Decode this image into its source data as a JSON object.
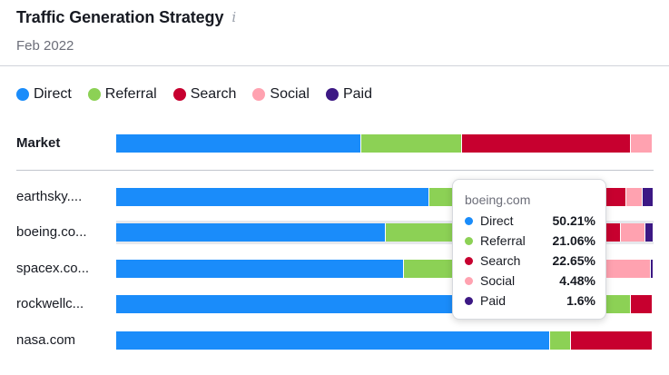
{
  "header": {
    "title": "Traffic Generation Strategy",
    "info_icon": "i",
    "subtitle": "Feb 2022"
  },
  "colors": {
    "Direct": "#1a8cfa",
    "Referral": "#8cd155",
    "Search": "#c7002f",
    "Social": "#ffa2b0",
    "Paid": "#3c1884"
  },
  "legend": [
    {
      "label": "Direct",
      "color": "#1a8cfa"
    },
    {
      "label": "Referral",
      "color": "#8cd155"
    },
    {
      "label": "Search",
      "color": "#c7002f"
    },
    {
      "label": "Social",
      "color": "#ffa2b0"
    },
    {
      "label": "Paid",
      "color": "#3c1884"
    }
  ],
  "tooltip": {
    "title": "boeing.com",
    "rows": [
      {
        "label": "Direct",
        "value": "50.21%",
        "color": "#1a8cfa"
      },
      {
        "label": "Referral",
        "value": "21.06%",
        "color": "#8cd155"
      },
      {
        "label": "Search",
        "value": "22.65%",
        "color": "#c7002f"
      },
      {
        "label": "Social",
        "value": "4.48%",
        "color": "#ffa2b0"
      },
      {
        "label": "Paid",
        "value": "1.6%",
        "color": "#3c1884"
      }
    ]
  },
  "chart_data": {
    "type": "bar",
    "stacked": true,
    "orientation": "horizontal",
    "unit": "percent",
    "series_names": [
      "Direct",
      "Referral",
      "Search",
      "Social",
      "Paid"
    ],
    "rows": [
      {
        "label": "Market",
        "values": [
          45.6,
          18.8,
          31.4,
          4.0,
          0.2
        ]
      },
      {
        "label": "earthsky....",
        "values": [
          58.3,
          11.5,
          25.2,
          3.0,
          2.0
        ]
      },
      {
        "label": "boeing.co...",
        "values": [
          50.21,
          21.06,
          22.65,
          4.48,
          1.6
        ]
      },
      {
        "label": "spacex.co...",
        "values": [
          53.5,
          14.0,
          23.0,
          9.0,
          0.5
        ]
      },
      {
        "label": "rockwellc...",
        "values": [
          81.0,
          14.8,
          4.0,
          0.2,
          0.0
        ]
      },
      {
        "label": "nasa.com",
        "values": [
          80.8,
          3.8,
          15.3,
          0.1,
          0.0
        ]
      }
    ]
  }
}
